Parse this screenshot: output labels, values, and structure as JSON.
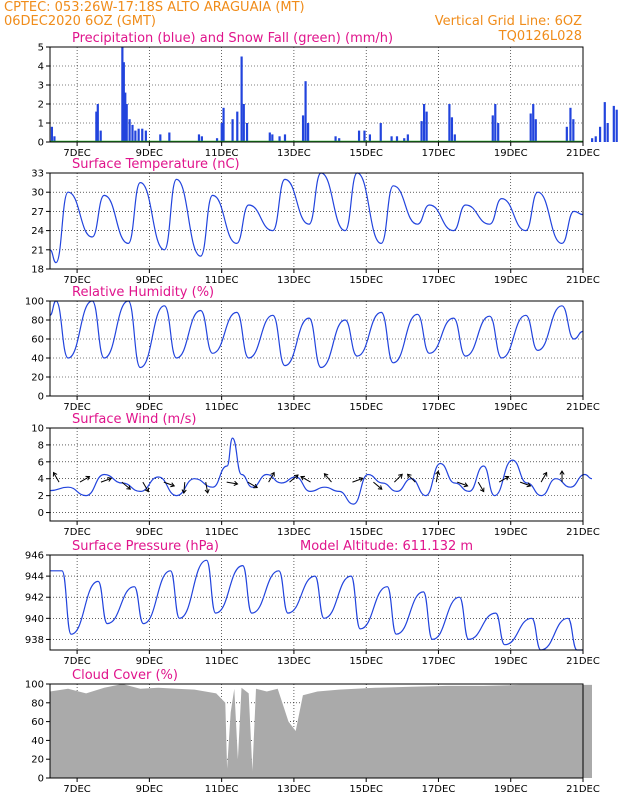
{
  "header": {
    "line1_left": "CPTEC:   053:26W-17:18S   ALTO ARAGUAIA (MT)",
    "line2_left": "06DEC2020 6OZ (GMT)",
    "line2_right": "Vertical Grid Line: 6OZ",
    "line3_right": "TQ0126L028"
  },
  "x_axis": {
    "start": "06DEC2020 06Z",
    "end": "21DEC2020 00Z",
    "ticks": [
      "7DEC",
      "9DEC",
      "11DEC",
      "13DEC",
      "15DEC",
      "17DEC",
      "19DEC",
      "21DEC"
    ],
    "tick_days": [
      1,
      3,
      5,
      7,
      9,
      11,
      13,
      15
    ]
  },
  "colors": {
    "series": "#2244dd",
    "snow": "#22aa22",
    "title": "#e0148c",
    "header": "#f08c1a",
    "cloud": "#aaaaaa"
  },
  "chart_data": [
    {
      "id": "precip",
      "type": "bar",
      "title": "Precipitation (blue) and Snow Fall (green) (mm/h)",
      "ylim": [
        0,
        5
      ],
      "yticks": [
        0,
        1,
        2,
        3,
        4,
        5
      ],
      "grid": true,
      "precip_events": [
        [
          0.05,
          0.8
        ],
        [
          0.12,
          0.3
        ],
        [
          1.28,
          1.6
        ],
        [
          1.32,
          2.0
        ],
        [
          1.4,
          0.6
        ],
        [
          2.0,
          5.0
        ],
        [
          2.04,
          4.2
        ],
        [
          2.08,
          2.6
        ],
        [
          2.12,
          2.0
        ],
        [
          2.2,
          1.2
        ],
        [
          2.28,
          0.9
        ],
        [
          2.36,
          0.6
        ],
        [
          2.45,
          0.7
        ],
        [
          2.55,
          0.7
        ],
        [
          2.65,
          0.6
        ],
        [
          3.05,
          0.4
        ],
        [
          3.3,
          0.5
        ],
        [
          4.12,
          0.4
        ],
        [
          4.2,
          0.3
        ],
        [
          4.62,
          0.2
        ],
        [
          4.75,
          1.0
        ],
        [
          4.8,
          1.8
        ],
        [
          5.05,
          1.2
        ],
        [
          5.18,
          1.6
        ],
        [
          5.3,
          4.5
        ],
        [
          5.36,
          2.0
        ],
        [
          5.45,
          1.0
        ],
        [
          6.08,
          0.5
        ],
        [
          6.15,
          0.4
        ],
        [
          6.35,
          0.3
        ],
        [
          6.5,
          0.4
        ],
        [
          7.0,
          1.4
        ],
        [
          7.07,
          3.2
        ],
        [
          7.14,
          1.0
        ],
        [
          7.9,
          0.3
        ],
        [
          8.0,
          0.2
        ],
        [
          8.55,
          0.6
        ],
        [
          8.7,
          0.6
        ],
        [
          8.85,
          0.4
        ],
        [
          9.15,
          1.0
        ],
        [
          9.45,
          0.3
        ],
        [
          9.6,
          0.3
        ],
        [
          9.8,
          0.2
        ],
        [
          9.9,
          0.4
        ],
        [
          10.28,
          1.1
        ],
        [
          10.35,
          2.0
        ],
        [
          10.42,
          1.6
        ],
        [
          11.05,
          2.0
        ],
        [
          11.12,
          1.3
        ],
        [
          11.2,
          0.4
        ],
        [
          12.25,
          1.4
        ],
        [
          12.32,
          2.0
        ],
        [
          12.4,
          1.0
        ],
        [
          13.3,
          1.5
        ],
        [
          13.37,
          2.0
        ],
        [
          13.44,
          1.2
        ],
        [
          14.3,
          0.8
        ],
        [
          14.4,
          1.8
        ],
        [
          14.48,
          1.2
        ],
        [
          15.0,
          0.2
        ],
        [
          15.1,
          0.3
        ],
        [
          15.22,
          0.8
        ],
        [
          15.35,
          2.1
        ],
        [
          15.43,
          1.0
        ],
        [
          15.6,
          1.9
        ],
        [
          15.68,
          1.7
        ]
      ],
      "snow": "0 mm/h throughout"
    },
    {
      "id": "temperature",
      "type": "line",
      "title": "Surface Temperature (nC)",
      "ylim": [
        18,
        33
      ],
      "yticks": [
        18,
        21,
        24,
        27,
        30,
        33
      ],
      "grid": true,
      "diurnal": {
        "days": [
          1,
          2,
          3,
          4,
          5,
          6,
          7,
          8,
          9,
          10,
          11,
          12,
          13,
          14,
          15
        ],
        "max": [
          30,
          29.5,
          31.5,
          32,
          29.5,
          28,
          32,
          33,
          33,
          31,
          28,
          28,
          29,
          30,
          27
        ],
        "min": [
          19,
          23,
          22,
          21,
          20,
          22,
          24,
          25,
          24,
          22,
          25,
          24,
          25,
          24,
          22
        ]
      },
      "points_note": "min near 10Z, max near 18Z each day",
      "start_value": 21,
      "end_value": 26.5
    },
    {
      "id": "humidity",
      "type": "line",
      "title": "Relative Humidity (%)",
      "ylim": [
        0,
        100
      ],
      "yticks": [
        0,
        20,
        40,
        60,
        80,
        100
      ],
      "grid": true,
      "diurnal": {
        "days": [
          1,
          2,
          3,
          4,
          5,
          6,
          7,
          8,
          9,
          10,
          11,
          12,
          13,
          14,
          15
        ],
        "high": [
          100,
          100,
          100,
          95,
          90,
          88,
          85,
          82,
          80,
          88,
          86,
          82,
          84,
          85,
          95
        ],
        "low": [
          40,
          40,
          30,
          40,
          45,
          40,
          32,
          30,
          42,
          35,
          45,
          42,
          40,
          48,
          60
        ]
      },
      "start_value": 85,
      "end_value": 68
    },
    {
      "id": "wind",
      "type": "line",
      "title": "Surface Wind (m/s)",
      "ylim": [
        -1,
        10
      ],
      "yticks": [
        0,
        2,
        4,
        6,
        8,
        10
      ],
      "grid": true,
      "speed_points": [
        [
          0,
          2.6
        ],
        [
          0.5,
          3.0
        ],
        [
          1.0,
          2.0
        ],
        [
          1.5,
          4.5
        ],
        [
          2.0,
          3.5
        ],
        [
          2.5,
          2.5
        ],
        [
          3.0,
          4.2
        ],
        [
          3.5,
          2.0
        ],
        [
          4.0,
          4.0
        ],
        [
          4.5,
          3.0
        ],
        [
          4.9,
          5.5
        ],
        [
          5.05,
          8.8
        ],
        [
          5.3,
          4.5
        ],
        [
          5.6,
          3.0
        ],
        [
          6.0,
          4.5
        ],
        [
          6.4,
          3.5
        ],
        [
          6.8,
          4.2
        ],
        [
          7.2,
          2.5
        ],
        [
          7.6,
          3.0
        ],
        [
          8.0,
          2.5
        ],
        [
          8.4,
          1.0
        ],
        [
          8.8,
          4.5
        ],
        [
          9.2,
          3.5
        ],
        [
          9.6,
          2.5
        ],
        [
          10.0,
          4.0
        ],
        [
          10.4,
          2.0
        ],
        [
          10.8,
          5.8
        ],
        [
          11.2,
          3.5
        ],
        [
          11.6,
          2.5
        ],
        [
          12.0,
          5.5
        ],
        [
          12.3,
          2.0
        ],
        [
          12.8,
          6.2
        ],
        [
          13.2,
          3.5
        ],
        [
          13.6,
          2.0
        ],
        [
          14.0,
          4.0
        ],
        [
          14.4,
          3.0
        ],
        [
          14.8,
          4.5
        ],
        [
          15.0,
          4.0
        ]
      ],
      "arrows_note": "wind direction vectors every 12h"
    },
    {
      "id": "pressure",
      "type": "line",
      "title": "Surface Pressure (hPa)",
      "annotation": "Model Altitude: 611.132 m",
      "ylim": [
        937,
        946
      ],
      "yticks": [
        938,
        940,
        942,
        944,
        946
      ],
      "grid": true,
      "diurnal": {
        "days": [
          1,
          2,
          3,
          4,
          5,
          6,
          7,
          8,
          9,
          10,
          11,
          12,
          13,
          14,
          15
        ],
        "max": [
          944.5,
          943.5,
          943,
          944.5,
          945.5,
          945,
          944.5,
          944,
          944,
          943,
          942.5,
          942,
          940.5,
          940,
          940
        ],
        "min": [
          938.5,
          939.5,
          939.5,
          940,
          940.5,
          940.5,
          940.5,
          940,
          939,
          938.5,
          938,
          938,
          937.5,
          937,
          937
        ]
      },
      "start_value": 944.5,
      "end_value": 937
    },
    {
      "id": "cloud",
      "type": "area",
      "title": "Cloud Cover (%)",
      "ylim": [
        0,
        100
      ],
      "yticks": [
        0,
        20,
        40,
        60,
        80,
        100
      ],
      "grid": true,
      "points": [
        [
          0,
          92
        ],
        [
          0.5,
          95
        ],
        [
          1.0,
          90
        ],
        [
          1.5,
          96
        ],
        [
          2.0,
          100
        ],
        [
          2.5,
          95
        ],
        [
          3.0,
          96
        ],
        [
          3.5,
          95
        ],
        [
          4.0,
          94
        ],
        [
          4.6,
          90
        ],
        [
          4.85,
          80
        ],
        [
          4.9,
          10
        ],
        [
          5.0,
          70
        ],
        [
          5.1,
          95
        ],
        [
          5.2,
          20
        ],
        [
          5.3,
          96
        ],
        [
          5.5,
          90
        ],
        [
          5.6,
          8
        ],
        [
          5.7,
          95
        ],
        [
          6.0,
          92
        ],
        [
          6.3,
          95
        ],
        [
          6.6,
          60
        ],
        [
          6.8,
          50
        ],
        [
          7.0,
          88
        ],
        [
          7.4,
          92
        ],
        [
          8.0,
          94
        ],
        [
          9.0,
          96
        ],
        [
          10.0,
          97
        ],
        [
          11.0,
          98
        ],
        [
          12.0,
          98
        ],
        [
          13.0,
          99
        ],
        [
          14.0,
          99
        ],
        [
          15.0,
          99
        ]
      ]
    }
  ]
}
